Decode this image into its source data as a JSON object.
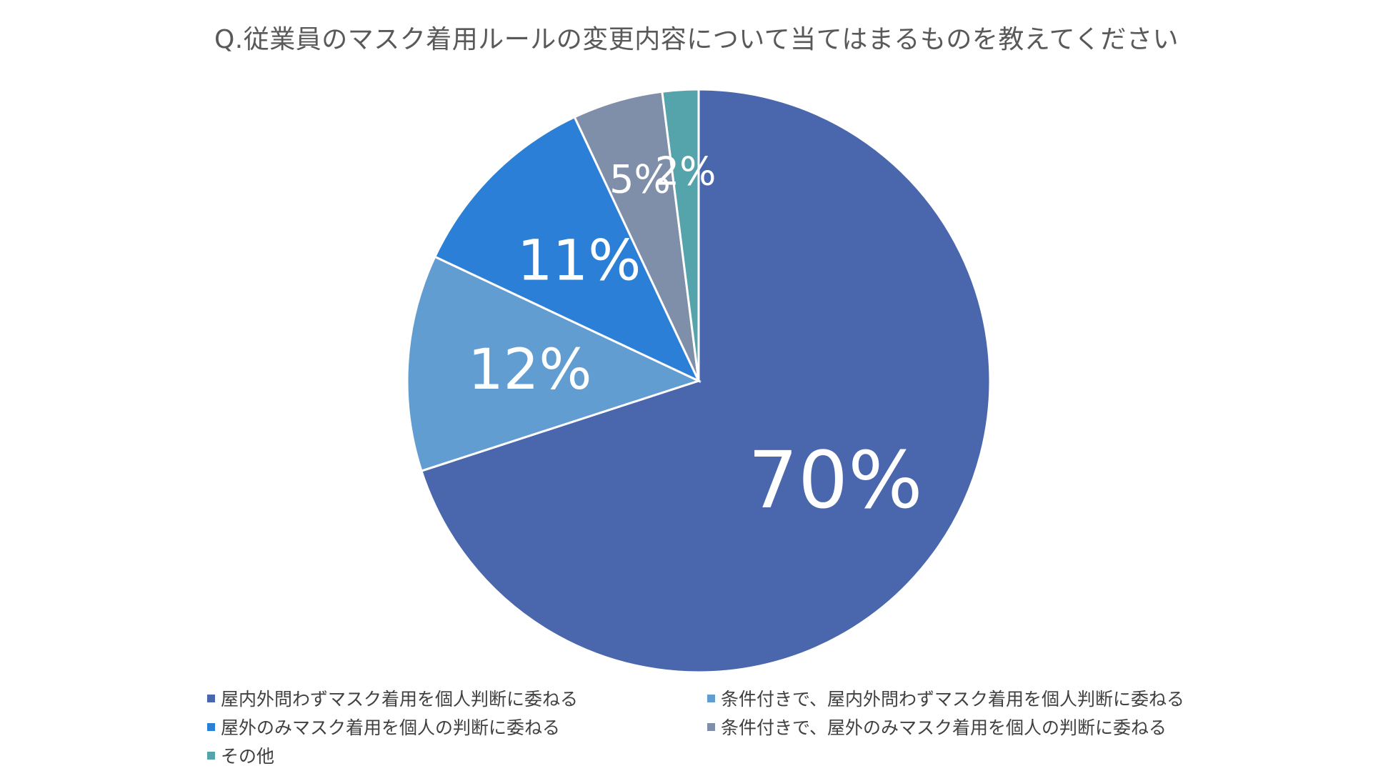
{
  "chart_data": {
    "type": "pie",
    "title": "Q.従業員のマスク着用ルールの変更内容について当てはまるものを教えてください",
    "categories": [
      "屋内外問わずマスク着用を個人判断に委ねる",
      "条件付きで、屋内外問わずマスク着用を個人判断に委ねる",
      "屋外のみマスク着用を個人の判断に委ねる",
      "条件付きで、屋外のみマスク着用を個人の判断に委ねる",
      "その他"
    ],
    "values": [
      70,
      12,
      11,
      5,
      2
    ],
    "data_labels": [
      "70%",
      "12%",
      "11%",
      "5%",
      "2%"
    ],
    "colors": [
      "#4A67AD",
      "#629DD1",
      "#2C7FD6",
      "#7F8FA9",
      "#55A3AB"
    ],
    "start_angle": "12 o'clock",
    "direction": "clockwise",
    "legend_position": "bottom"
  }
}
